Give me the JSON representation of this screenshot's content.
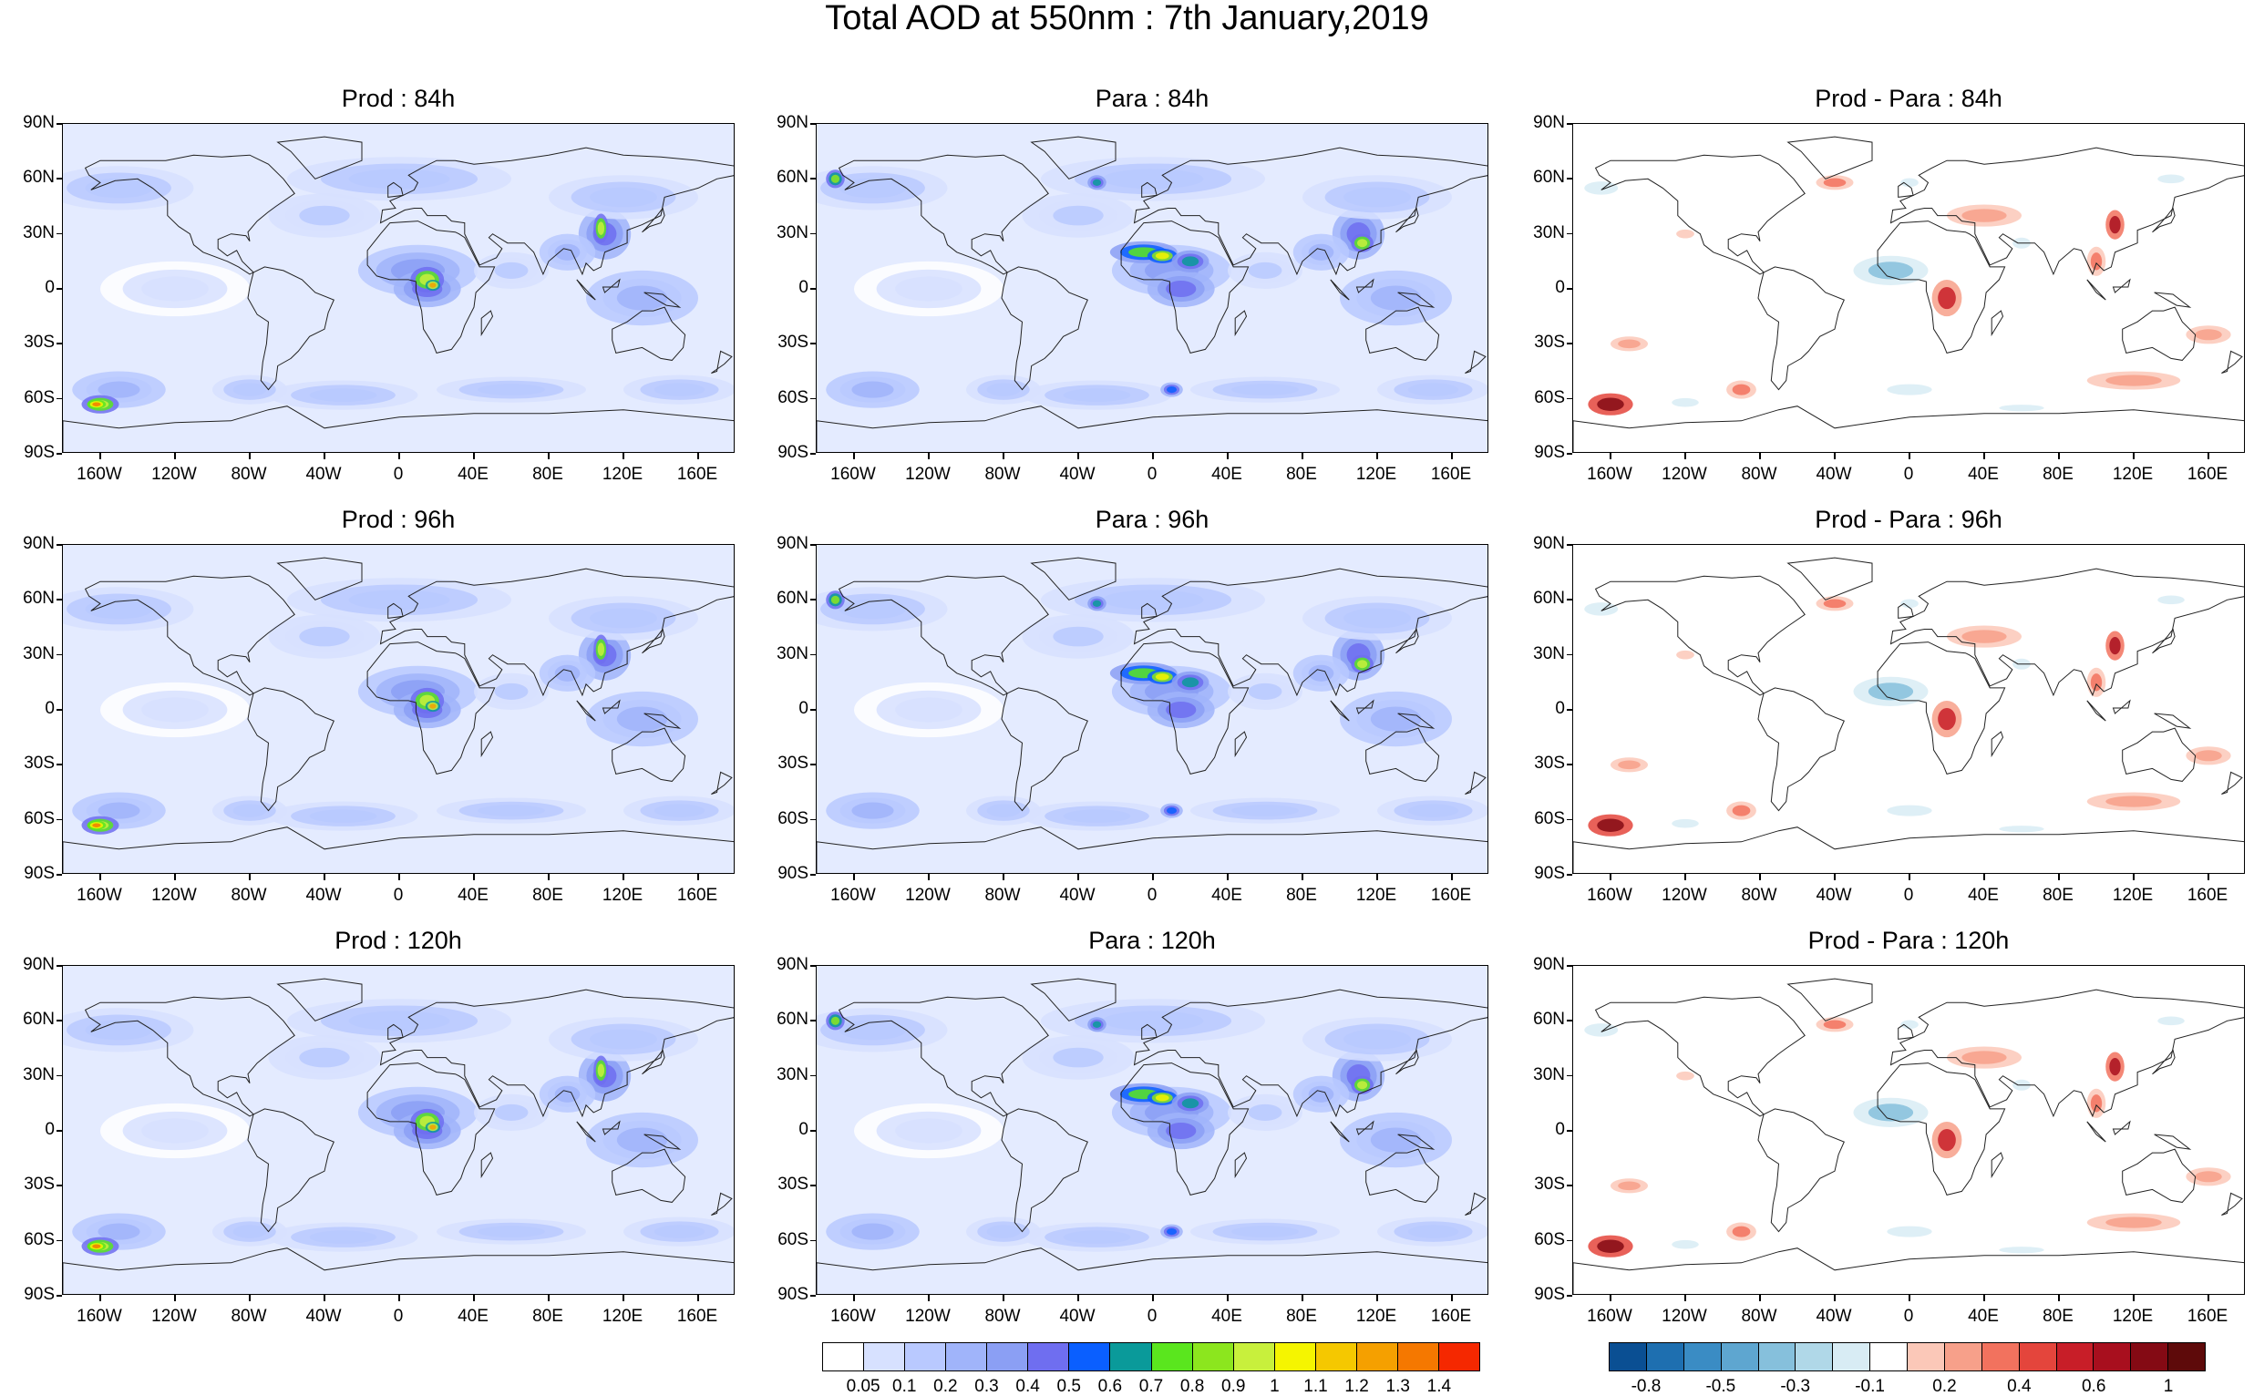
{
  "title": "Total AOD at 550nm : 7th January,2019",
  "panels": [
    {
      "title": "Prod : 84h",
      "kind": "aod"
    },
    {
      "title": "Para : 84h",
      "kind": "aod"
    },
    {
      "title": "Prod - Para : 84h",
      "kind": "diff"
    },
    {
      "title": "Prod : 96h",
      "kind": "aod"
    },
    {
      "title": "Para : 96h",
      "kind": "aod"
    },
    {
      "title": "Prod - Para : 96h",
      "kind": "diff"
    },
    {
      "title": "Prod : 120h",
      "kind": "aod"
    },
    {
      "title": "Para : 120h",
      "kind": "aod"
    },
    {
      "title": "Prod - Para : 120h",
      "kind": "diff"
    }
  ],
  "lat_labels": [
    "90N",
    "60N",
    "30N",
    "0",
    "30S",
    "60S",
    "90S"
  ],
  "lon_labels": [
    "160W",
    "120W",
    "80W",
    "40W",
    "0",
    "40E",
    "80E",
    "120E",
    "160E"
  ],
  "aod_colorbar": {
    "colors": [
      "#ffffff",
      "#d7e1ff",
      "#b9c9ff",
      "#a0b4fa",
      "#8b9ff4",
      "#6f6ef0",
      "#0a5fff",
      "#0a9a9a",
      "#5ae61e",
      "#8ce61e",
      "#c8f03c",
      "#f5f500",
      "#f5c800",
      "#f5a000",
      "#f57800",
      "#f52800"
    ],
    "labels": [
      "0.05",
      "0.1",
      "0.2",
      "0.3",
      "0.4",
      "0.5",
      "0.6",
      "0.7",
      "0.8",
      "0.9",
      "1",
      "1.1",
      "1.2",
      "1.3",
      "1.4"
    ]
  },
  "diff_colorbar": {
    "colors": [
      "#0a4f93",
      "#1e6fb0",
      "#3a8cc4",
      "#5ea6d0",
      "#86c0dc",
      "#b0d8e8",
      "#d8ecf4",
      "#ffffff",
      "#fbc8b8",
      "#f7a08a",
      "#f2725e",
      "#e4453c",
      "#c81e28",
      "#a80f1e",
      "#840a14",
      "#5e0a0a"
    ],
    "labels": [
      "-0.8",
      "-0.5",
      "-0.3",
      "-0.1",
      "0.2",
      "0.4",
      "0.6",
      "1"
    ]
  }
}
